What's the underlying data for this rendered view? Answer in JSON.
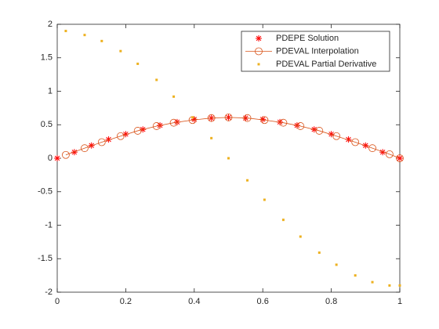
{
  "chart_data": {
    "type": "line",
    "xlim": [
      0,
      1
    ],
    "xticks": [
      0,
      0.2,
      0.4,
      0.6,
      0.8,
      1
    ],
    "ylim": [
      -2,
      2
    ],
    "yticks": [
      -2,
      -1.5,
      -1,
      -0.5,
      0,
      0.5,
      1,
      1.5,
      2
    ],
    "grid": false,
    "legend": "northeast",
    "series": [
      {
        "name": "PDEPE Solution",
        "color": "#ff0000",
        "marker": "asterisk",
        "line": false,
        "x": [
          0,
          0.05,
          0.1,
          0.15,
          0.2,
          0.25,
          0.3,
          0.35,
          0.4,
          0.45,
          0.5,
          0.55,
          0.6,
          0.65,
          0.7,
          0.75,
          0.8,
          0.85,
          0.9,
          0.95,
          1
        ],
        "values": [
          0,
          0.09,
          0.19,
          0.28,
          0.36,
          0.43,
          0.49,
          0.54,
          0.58,
          0.6,
          0.61,
          0.6,
          0.58,
          0.54,
          0.49,
          0.43,
          0.36,
          0.28,
          0.19,
          0.09,
          0
        ]
      },
      {
        "name": "PDEVAL Interpolation",
        "color": "#d95319",
        "marker": "circle",
        "line": true,
        "x": [
          0.025,
          0.08,
          0.13,
          0.185,
          0.235,
          0.29,
          0.34,
          0.395,
          0.45,
          0.5,
          0.555,
          0.605,
          0.66,
          0.71,
          0.765,
          0.815,
          0.87,
          0.92,
          0.97,
          1
        ],
        "values": [
          0.05,
          0.15,
          0.24,
          0.33,
          0.41,
          0.48,
          0.53,
          0.57,
          0.6,
          0.61,
          0.6,
          0.57,
          0.53,
          0.48,
          0.41,
          0.33,
          0.24,
          0.15,
          0.06,
          0
        ]
      },
      {
        "name": "PDEVAL Partial Derivative",
        "color": "#edb120",
        "marker": "dot",
        "line": false,
        "x": [
          0.025,
          0.08,
          0.13,
          0.185,
          0.235,
          0.29,
          0.34,
          0.395,
          0.45,
          0.5,
          0.555,
          0.605,
          0.66,
          0.71,
          0.765,
          0.815,
          0.87,
          0.92,
          0.97,
          1
        ],
        "values": [
          1.9,
          1.84,
          1.75,
          1.6,
          1.41,
          1.17,
          0.92,
          0.61,
          0.3,
          0,
          -0.33,
          -0.62,
          -0.92,
          -1.17,
          -1.41,
          -1.59,
          -1.75,
          -1.85,
          -1.9,
          -1.9
        ]
      }
    ]
  }
}
